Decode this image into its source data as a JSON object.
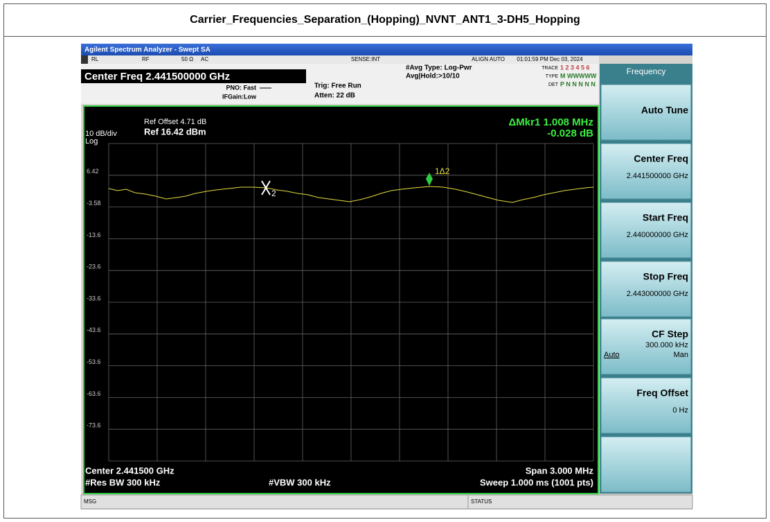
{
  "title": "Carrier_Frequencies_Separation_(Hopping)_NVNT_ANT1_3-DH5_Hopping",
  "window": {
    "title": "Agilent Spectrum Analyzer - Swept SA",
    "status": [
      "RL",
      "RF",
      "50 Ω",
      "AC",
      "SENSE:INT",
      "ALIGN AUTO",
      "01:01:59 PM Dec 03, 2024"
    ],
    "center_freq": "Center Freq 2.441500000 GHz",
    "pno": "PNO: Fast",
    "ifgain": "IFGain:Low",
    "trig": "Trig: Free Run",
    "atten": "Atten: 22 dB",
    "avg_type": "#Avg Type: Log-Pwr",
    "avg_hold": "Avg|Hold:>10/10",
    "trace_rows": [
      {
        "label": "TRACE",
        "value": "1 2 3 4 5 6"
      },
      {
        "label": "TYPE",
        "value": "M WWWWW"
      },
      {
        "label": "DET",
        "value": "P N N N N N"
      }
    ]
  },
  "plot": {
    "ref_offset": "Ref Offset 4.71 dB",
    "ref": "Ref 16.42 dBm",
    "scale": "10 dB/div",
    "log": "Log",
    "marker_readout": "ΔMkr1 1.008 MHz",
    "marker_value": "-0.028 dB",
    "y_labels": [
      "6.42",
      "-3.58",
      "-13.6",
      "-23.6",
      "-33.6",
      "-43.6",
      "-53.6",
      "-63.6",
      "-73.6"
    ],
    "marker_ref": "2",
    "marker_delta": "1Δ2"
  },
  "footer": {
    "center": "Center 2.441500 GHz",
    "span": "Span 3.000 MHz",
    "rbw": "#Res BW 300 kHz",
    "vbw": "#VBW 300 kHz",
    "sweep": "Sweep  1.000 ms (1001 pts)"
  },
  "status_bar": [
    "MSG",
    "STATUS"
  ],
  "softkeys": {
    "header": "Frequency",
    "keys": [
      {
        "label": "Auto Tune"
      },
      {
        "label": "Center Freq",
        "value": "2.441500000 GHz"
      },
      {
        "label": "Start Freq",
        "value": "2.440000000 GHz"
      },
      {
        "label": "Stop Freq",
        "value": "2.443000000 GHz"
      },
      {
        "label": "CF Step",
        "value": "300.000 kHz",
        "options": [
          "Auto",
          "Man"
        ]
      },
      {
        "label": "Freq Offset",
        "value": "0 Hz"
      }
    ]
  }
}
